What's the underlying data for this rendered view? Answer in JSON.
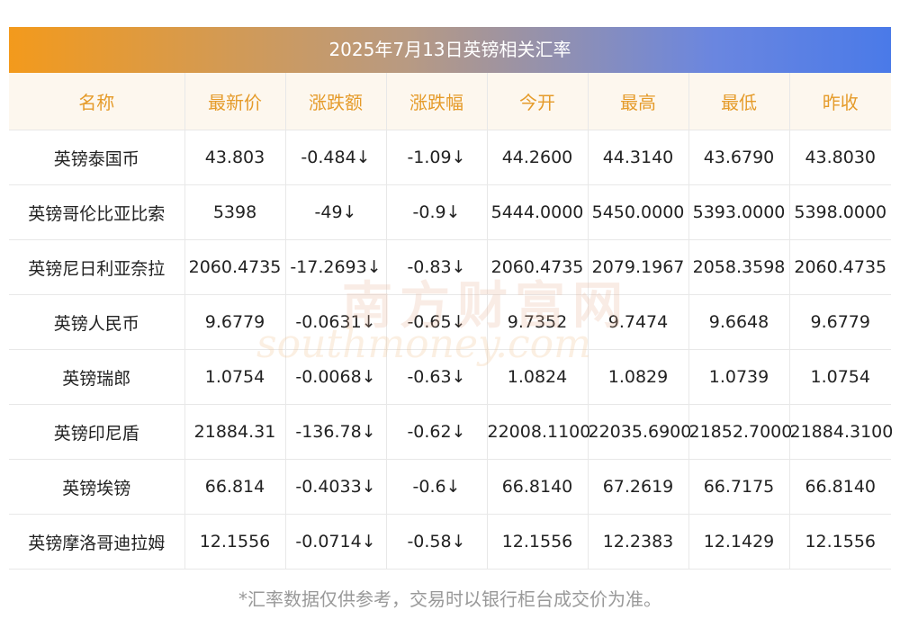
{
  "title": "2025年7月13日英镑相关汇率",
  "headers": [
    "名称",
    "最新价",
    "涨跌额",
    "涨跌幅",
    "今开",
    "最高",
    "最低",
    "昨收"
  ],
  "rows": [
    [
      "英镑泰国币",
      "43.803",
      "-0.484↓",
      "-1.09↓",
      "44.2600",
      "44.3140",
      "43.6790",
      "43.8030"
    ],
    [
      "英镑哥伦比亚比索",
      "5398",
      "-49↓",
      "-0.9↓",
      "5444.0000",
      "5450.0000",
      "5393.0000",
      "5398.0000"
    ],
    [
      "英镑尼日利亚奈拉",
      "2060.4735",
      "-17.2693↓",
      "-0.83↓",
      "2060.4735",
      "2079.1967",
      "2058.3598",
      "2060.4735"
    ],
    [
      "英镑人民币",
      "9.6779",
      "-0.0631↓",
      "-0.65↓",
      "9.7352",
      "9.7474",
      "9.6648",
      "9.6779"
    ],
    [
      "英镑瑞郎",
      "1.0754",
      "-0.0068↓",
      "-0.63↓",
      "1.0824",
      "1.0829",
      "1.0739",
      "1.0754"
    ],
    [
      "英镑印尼盾",
      "21884.31",
      "-136.78↓",
      "-0.62↓",
      "22008.1100",
      "22035.6900",
      "21852.7000",
      "21884.3100"
    ],
    [
      "英镑埃镑",
      "66.814",
      "-0.4033↓",
      "-0.6↓",
      "66.8140",
      "67.2619",
      "66.7175",
      "66.8140"
    ],
    [
      "英镑摩洛哥迪拉姆",
      "12.1556",
      "-0.0714↓",
      "-0.58↓",
      "12.1556",
      "12.2383",
      "12.1429",
      "12.1556"
    ]
  ],
  "watermark": {
    "cn": "南方财富网",
    "en": "southmoney.com"
  },
  "footer": "*汇率数据仅供参考，交易时以银行柜台成交价为准。",
  "colors": {
    "header_text": "#e59b2a",
    "change_text": "#1a8a1a",
    "title_gradient": [
      "#f39a1c",
      "#4a7ae8"
    ]
  }
}
